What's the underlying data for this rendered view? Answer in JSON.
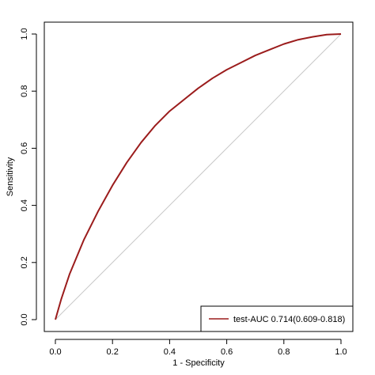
{
  "chart_data": {
    "type": "line",
    "title": "",
    "xlabel": "1 - Specificity",
    "ylabel": "Sensitivity",
    "xlim": [
      0,
      1
    ],
    "ylim": [
      0,
      1
    ],
    "x_ticks": [
      "0.0",
      "0.2",
      "0.4",
      "0.6",
      "0.8",
      "1.0"
    ],
    "y_ticks": [
      "0.0",
      "0.2",
      "0.4",
      "0.6",
      "0.8",
      "1.0"
    ],
    "grid": false,
    "legend_position": "bottom-right",
    "reference_line": {
      "x": [
        0,
        1
      ],
      "y": [
        0,
        1
      ],
      "color": "#c8c8c8"
    },
    "series": [
      {
        "name": "test-AUC 0.714(0.609-0.818)",
        "color": "#9b1c1c",
        "x": [
          0.0,
          0.02,
          0.05,
          0.1,
          0.15,
          0.2,
          0.25,
          0.3,
          0.35,
          0.4,
          0.45,
          0.5,
          0.55,
          0.6,
          0.65,
          0.7,
          0.75,
          0.8,
          0.85,
          0.9,
          0.95,
          1.0
        ],
        "y": [
          0.0,
          0.07,
          0.16,
          0.28,
          0.38,
          0.47,
          0.55,
          0.62,
          0.68,
          0.73,
          0.77,
          0.81,
          0.845,
          0.875,
          0.9,
          0.925,
          0.945,
          0.965,
          0.98,
          0.99,
          0.998,
          1.0
        ]
      }
    ]
  }
}
